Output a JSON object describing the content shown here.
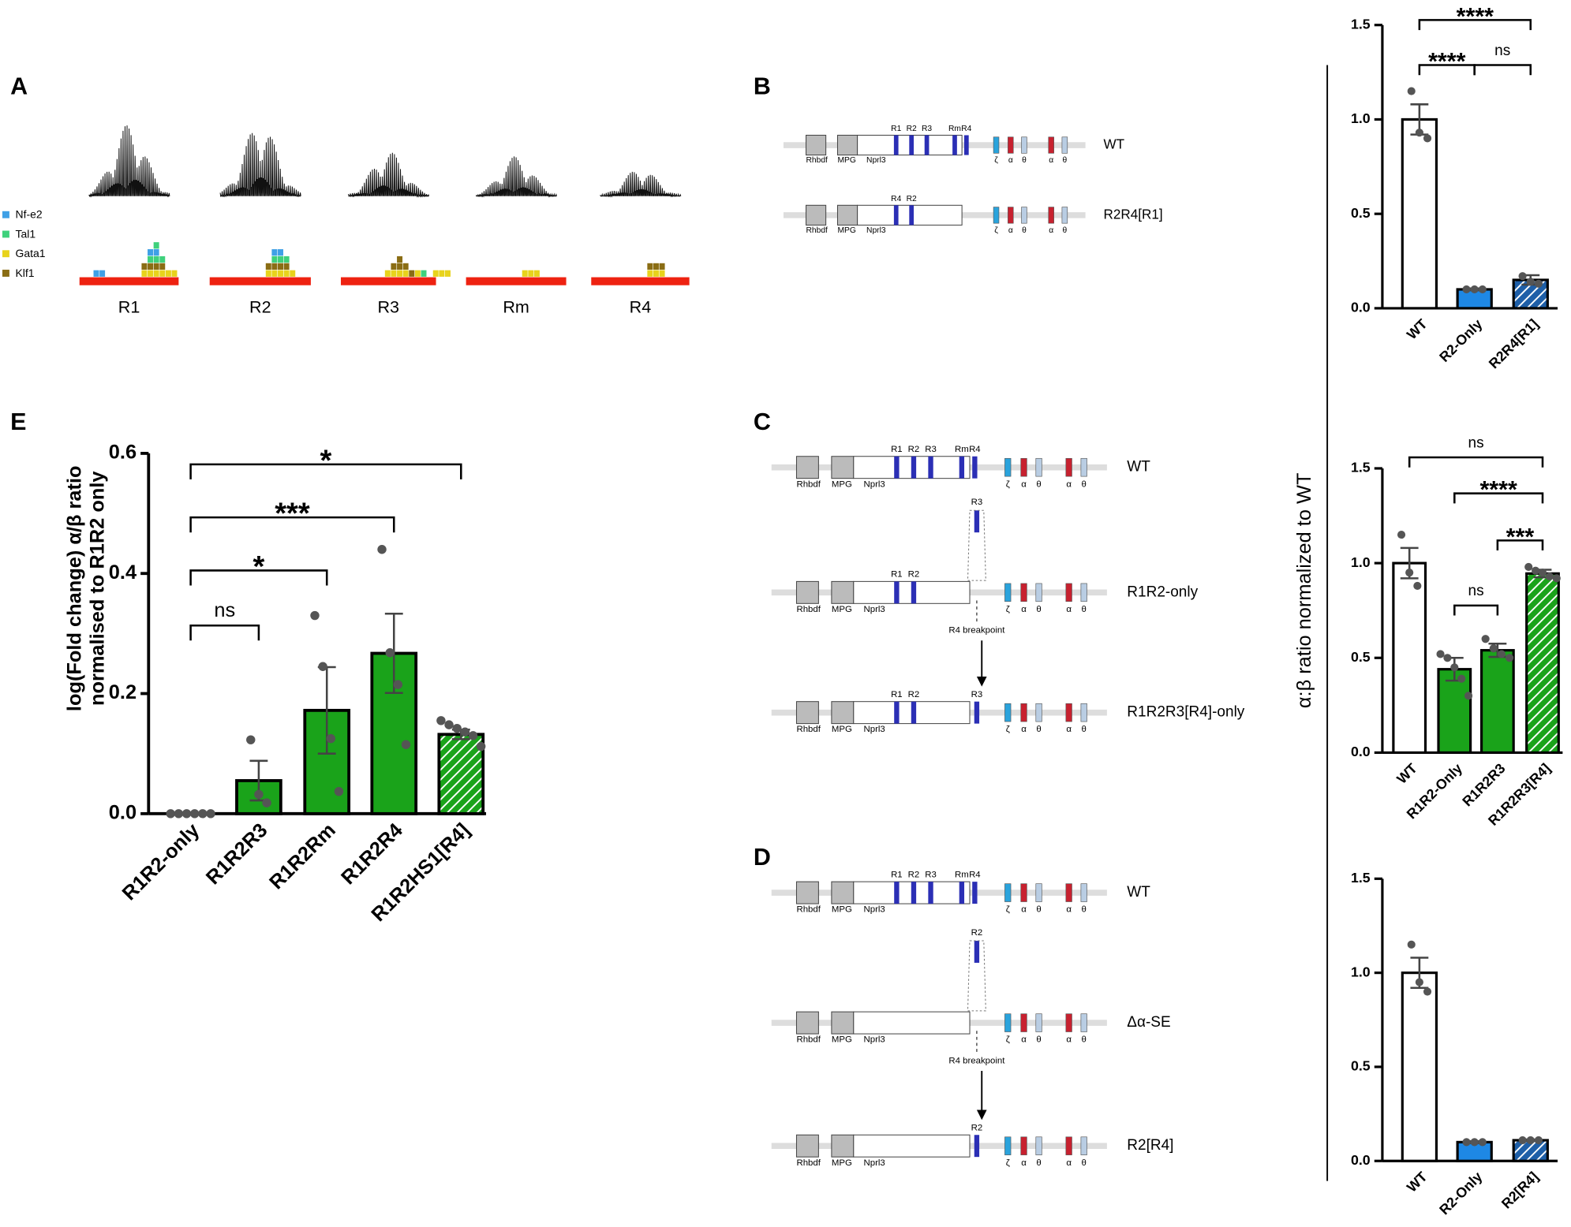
{
  "panel_labels": [
    "A",
    "B",
    "C",
    "D",
    "E"
  ],
  "panel_A": {
    "legend": [
      {
        "name": "Nf-e2",
        "color": "#3fa0e6"
      },
      {
        "name": "Tal1",
        "color": "#3fd17c"
      },
      {
        "name": "Gata1",
        "color": "#e8d31c"
      },
      {
        "name": "Klf1",
        "color": "#8a6d14"
      }
    ],
    "regions": [
      "R1",
      "R2",
      "R3",
      "Rm",
      "R4"
    ],
    "track_color": "#ee2211"
  },
  "locus": {
    "genes": [
      "Rhbdf",
      "MPG",
      "Nprl3"
    ],
    "globins": [
      {
        "label": "ζ",
        "color": "#2aa3dc"
      },
      {
        "label": "α",
        "color": "#c7212f"
      },
      {
        "label": "θ",
        "color": "#b9cde3"
      },
      {
        "label": "α",
        "color": "#c7212f"
      },
      {
        "label": "θ",
        "color": "#b9cde3"
      }
    ],
    "element_color": "#2b2fb5"
  },
  "panel_B": {
    "rows": [
      {
        "name": "WT",
        "elements": [
          "R1",
          "R2",
          "R3",
          "Rm",
          "R4"
        ]
      },
      {
        "name": "R2R4[R1]",
        "elements": [
          "R4",
          "R2"
        ]
      }
    ]
  },
  "panel_C": {
    "rows": [
      {
        "name": "WT",
        "elements": [
          "R1",
          "R2",
          "R3",
          "Rm",
          "R4"
        ]
      },
      {
        "name": "R1R2-only",
        "elements": [
          "R1",
          "R2"
        ]
      },
      {
        "name": "R1R2R3[R4]-only",
        "elements": [
          "R1",
          "R2"
        ],
        "breakpoint_element": "R3"
      }
    ],
    "insert": "R3",
    "breakpoint": "R4 breakpoint"
  },
  "panel_D": {
    "rows": [
      {
        "name": "WT",
        "elements": [
          "R1",
          "R2",
          "R3",
          "Rm",
          "R4"
        ]
      },
      {
        "name": "Δα-SE",
        "elements": []
      },
      {
        "name": "R2[R4]",
        "elements": [],
        "breakpoint_element": "R2"
      }
    ],
    "insert": "R2",
    "breakpoint": "R4 breakpoint"
  },
  "shared_ylabel": "α:β ratio normalized to WT",
  "chart_data": [
    {
      "type": "bar",
      "ylabel": [
        "log(Fold change) α/β  ratio",
        "normalised to R1R2 only"
      ],
      "categories": [
        "R1R2-only",
        "R1R2R3",
        "R1R2Rm",
        "R1R2R4",
        "R1R2HS1[R4]"
      ],
      "values": [
        0,
        0.055,
        0.172,
        0.267,
        0.132
      ],
      "errors": [
        0,
        0.033,
        0.072,
        0.066,
        0.008
      ],
      "points": [
        [
          0,
          0,
          0,
          0,
          0,
          0
        ],
        [
          0.123,
          0.032,
          0.018
        ],
        [
          0.33,
          0.245,
          0.125,
          0.037
        ],
        [
          0.44,
          0.268,
          0.215,
          0.115
        ],
        [
          0.155,
          0.148,
          0.142,
          0.136,
          0.13,
          0.112
        ]
      ],
      "colors": [
        "#1aa31a",
        "#1aa31a",
        "#1aa31a",
        "#1aa31a",
        "#1aa31a"
      ],
      "hatched": [
        false,
        false,
        false,
        false,
        true
      ],
      "ylim": [
        0,
        0.6
      ],
      "yticks": [
        {
          "value": 0,
          "label": "0.0"
        },
        {
          "value": 0.2,
          "label": "0.2"
        },
        {
          "value": 0.4,
          "label": "0.4"
        },
        {
          "value": 0.6,
          "label": "0.6"
        }
      ],
      "brackets": [
        {
          "between": [
            "R1R2-only",
            "R1R2R3"
          ],
          "label": "ns"
        },
        {
          "between": [
            "R1R2-only",
            "R1R2Rm"
          ],
          "label": "*"
        },
        {
          "between": [
            "R1R2-only",
            "R1R2R4"
          ],
          "label": "***"
        },
        {
          "between": [
            "R1R2-only",
            "R1R2HS1[R4]"
          ],
          "label": "*"
        }
      ]
    },
    {
      "type": "bar",
      "categories": [
        "WT",
        "R2-Only",
        "R2R4[R1]"
      ],
      "values": [
        1.0,
        0.1,
        0.15
      ],
      "errors": [
        0.08,
        0.005,
        0.025
      ],
      "points": [
        [
          1.15,
          0.93,
          0.9
        ],
        [
          0.1,
          0.1,
          0.1
        ],
        [
          0.17,
          0.14,
          0.13
        ]
      ],
      "colors": [
        "#ffffff",
        "#1e88e5",
        "#1e5fa8"
      ],
      "hatched": [
        false,
        false,
        true
      ],
      "ylim": [
        0,
        1.5
      ],
      "yticks": [
        {
          "value": 0,
          "label": "0.0"
        },
        {
          "value": 0.5,
          "label": "0.5"
        },
        {
          "value": 1,
          "label": "1.0"
        },
        {
          "value": 1.5,
          "label": "1.5"
        }
      ],
      "brackets": [
        {
          "between": [
            "R2-Only",
            "R2R4[R1]"
          ],
          "label": "ns"
        },
        {
          "between": [
            "WT",
            "R2-Only"
          ],
          "label": "****"
        },
        {
          "between": [
            "WT",
            "R2R4[R1]"
          ],
          "label": "****"
        }
      ]
    },
    {
      "type": "bar",
      "categories": [
        "WT",
        "R1R2-Only",
        "R1R2R3",
        "R1R2R3[R4]"
      ],
      "values": [
        1.0,
        0.44,
        0.54,
        0.945
      ],
      "errors": [
        0.08,
        0.06,
        0.035,
        0.02
      ],
      "points": [
        [
          1.15,
          0.95,
          0.88
        ],
        [
          0.52,
          0.5,
          0.45,
          0.39,
          0.3
        ],
        [
          0.6,
          0.55,
          0.52,
          0.5
        ],
        [
          0.98,
          0.96,
          0.95,
          0.93,
          0.92
        ]
      ],
      "colors": [
        "#ffffff",
        "#1aa31a",
        "#1aa31a",
        "#1aa31a"
      ],
      "hatched": [
        false,
        false,
        false,
        true
      ],
      "ylim": [
        0,
        1.5
      ],
      "yticks": [
        {
          "value": 0,
          "label": "0.0"
        },
        {
          "value": 0.5,
          "label": "0.5"
        },
        {
          "value": 1,
          "label": "1.0"
        },
        {
          "value": 1.5,
          "label": "1.5"
        }
      ],
      "brackets": [
        {
          "between": [
            "R1R2-Only",
            "R1R2R3"
          ],
          "label": "ns"
        },
        {
          "between": [
            "R1R2R3",
            "R1R2R3[R4]"
          ],
          "label": "***"
        },
        {
          "between": [
            "R1R2-Only",
            "R1R2R3[R4]"
          ],
          "label": "****"
        },
        {
          "between": [
            "WT",
            "R1R2R3[R4]"
          ],
          "label": "ns"
        }
      ]
    },
    {
      "type": "bar",
      "categories": [
        "WT",
        "R2-Only",
        "R2[R4]"
      ],
      "values": [
        1.0,
        0.1,
        0.11
      ],
      "errors": [
        0.08,
        0.005,
        0.004
      ],
      "points": [
        [
          1.15,
          0.95,
          0.9
        ],
        [
          0.1,
          0.1,
          0.1
        ],
        [
          0.11,
          0.11,
          0.11
        ]
      ],
      "colors": [
        "#ffffff",
        "#1e88e5",
        "#1e5fa8"
      ],
      "hatched": [
        false,
        false,
        true
      ],
      "ylim": [
        0,
        1.5
      ],
      "yticks": [
        {
          "value": 0,
          "label": "0.0"
        },
        {
          "value": 0.5,
          "label": "0.5"
        },
        {
          "value": 1,
          "label": "1.0"
        },
        {
          "value": 1.5,
          "label": "1.5"
        }
      ],
      "brackets": []
    }
  ]
}
